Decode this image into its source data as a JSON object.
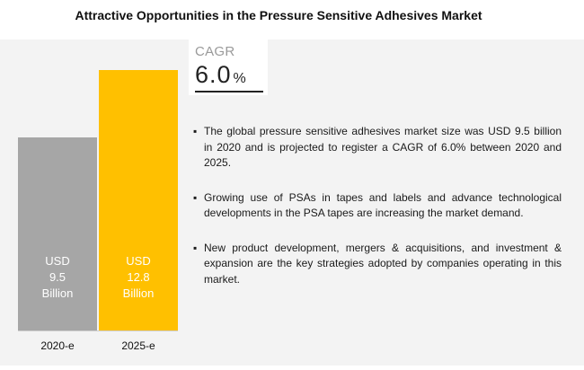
{
  "title": "Attractive Opportunities in the Pressure Sensitive Adhesives Market",
  "cagr": {
    "label": "CAGR",
    "value": "6.0",
    "unit": "%"
  },
  "bullets": [
    "The global pressure sensitive adhesives market size was USD 9.5 billion in 2020 and is projected to register a CAGR of 6.0% between 2020 and 2025.",
    "Growing use of PSAs in tapes and labels and advance technological developments in the PSA tapes are increasing the market demand.",
    "New product development, mergers & acquisitions, and investment & expansion are the key strategies adopted by companies operating in this market."
  ],
  "bullet_symbol": "▪",
  "chart_data": {
    "type": "bar",
    "categories": [
      "2020-e",
      "2025-e"
    ],
    "values": [
      9.5,
      12.8
    ],
    "data_labels": [
      "USD\n9.5\nBillion",
      "USD\n12.8\nBillion"
    ],
    "colors": [
      "#a6a6a6",
      "#ffc000"
    ],
    "ylim": [
      0,
      12.8
    ],
    "grid": false,
    "legend": "none",
    "title": "",
    "xlabel": "",
    "ylabel": ""
  }
}
